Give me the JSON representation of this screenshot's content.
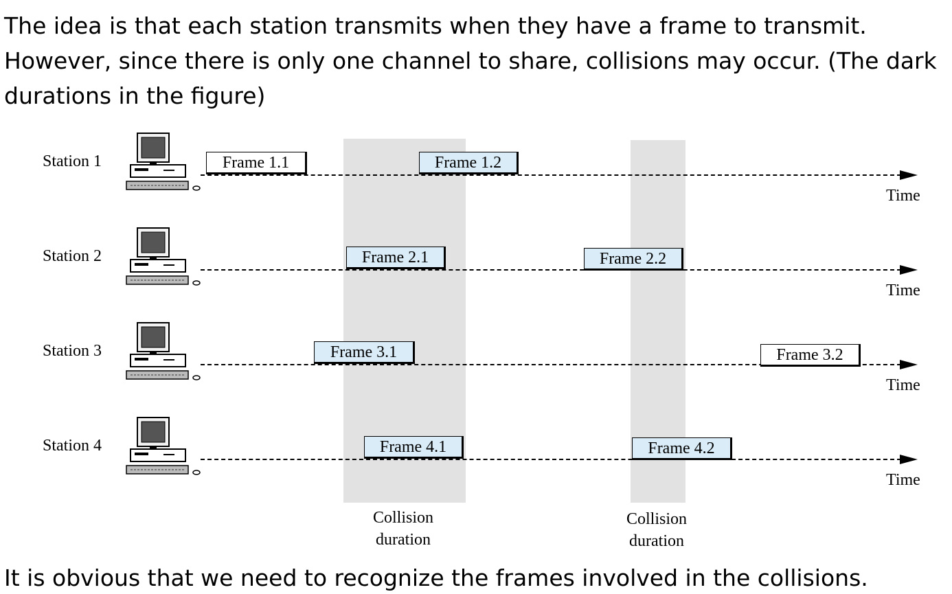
{
  "intro": {
    "line1": "The idea is that each station transmits when they have a frame to transmit.",
    "line2": "However, since there is only one channel to share, collisions may occur. (The dark",
    "line3": "durations in the figure)"
  },
  "figure": {
    "time_label": "Time",
    "collision_label_line1": "Collision",
    "collision_label_line2": "duration",
    "stations": [
      {
        "label": "Station 1",
        "frames": [
          {
            "label": "Frame 1.1",
            "in_collision": false
          },
          {
            "label": "Frame 1.2",
            "in_collision": true
          }
        ]
      },
      {
        "label": "Station 2",
        "frames": [
          {
            "label": "Frame 2.1",
            "in_collision": true
          },
          {
            "label": "Frame 2.2",
            "in_collision": true
          }
        ]
      },
      {
        "label": "Station 3",
        "frames": [
          {
            "label": "Frame 3.1",
            "in_collision": true
          },
          {
            "label": "Frame 3.2",
            "in_collision": false
          }
        ]
      },
      {
        "label": "Station 4",
        "frames": [
          {
            "label": "Frame 4.1",
            "in_collision": true
          },
          {
            "label": "Frame 4.2",
            "in_collision": true
          }
        ]
      }
    ],
    "colors": {
      "collision_band": "#e2e2e2",
      "collided_frame": "#d9ecf7",
      "clean_frame": "#ffffff"
    }
  },
  "outro": "It is obvious that we need to recognize the frames involved in the collisions."
}
